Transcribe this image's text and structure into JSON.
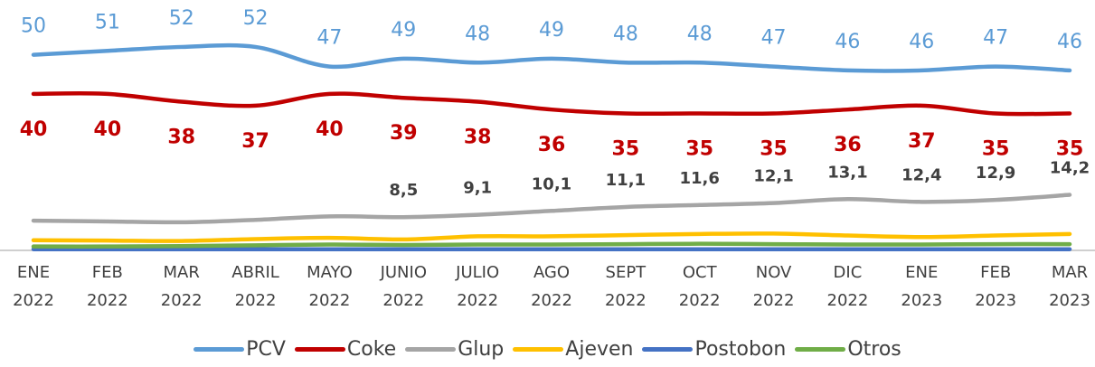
{
  "chart_data": {
    "type": "line",
    "categories": [
      "ENE 2022",
      "FEB 2022",
      "MAR 2022",
      "ABRIL 2022",
      "MAYO 2022",
      "JUNIO 2022",
      "JULIO 2022",
      "AGO 2022",
      "SEPT 2022",
      "OCT 2022",
      "NOV 2022",
      "DIC 2022",
      "ENE 2023",
      "FEB 2023",
      "MAR 2023"
    ],
    "ylim": [
      0,
      64
    ],
    "series": [
      {
        "name": "PCV",
        "color": "#5b9bd5",
        "values": [
          50,
          51,
          52,
          52,
          47,
          49,
          48,
          49,
          48,
          48,
          47,
          46,
          46,
          47,
          46
        ]
      },
      {
        "name": "Coke",
        "color": "#c00000",
        "values": [
          40,
          40,
          38,
          37,
          40,
          39,
          38,
          36,
          35,
          35,
          35,
          36,
          37,
          35,
          35
        ]
      },
      {
        "name": "Glup",
        "color": "#a5a5a5",
        "values": [
          7.6,
          7.4,
          7.2,
          7.8,
          8.7,
          8.5,
          9.1,
          10.1,
          11.1,
          11.6,
          12.1,
          13.1,
          12.4,
          12.9,
          14.2
        ],
        "value_labels": [
          null,
          null,
          null,
          null,
          null,
          "8,5",
          "9,1",
          "10,1",
          "11,1",
          "11,6",
          "12,1",
          "13,1",
          "12,4",
          "12,9",
          "14,2"
        ]
      },
      {
        "name": "Ajeven",
        "color": "#ffc000",
        "values": [
          2.6,
          2.5,
          2.4,
          2.9,
          3.2,
          2.8,
          3.6,
          3.6,
          3.9,
          4.2,
          4.3,
          3.8,
          3.4,
          3.8,
          4.2
        ]
      },
      {
        "name": "Postobon",
        "color": "#4472c4",
        "values": [
          0.3,
          0.3,
          0.3,
          0.3,
          0.3,
          0.3,
          0.3,
          0.3,
          0.3,
          0.3,
          0.3,
          0.3,
          0.3,
          0.3,
          0.3
        ]
      },
      {
        "name": "Otros",
        "color": "#70ad47",
        "values": [
          1.0,
          1.0,
          1.1,
          1.3,
          1.5,
          1.4,
          1.5,
          1.5,
          1.6,
          1.7,
          1.6,
          1.5,
          1.5,
          1.6,
          1.6
        ]
      }
    ]
  }
}
